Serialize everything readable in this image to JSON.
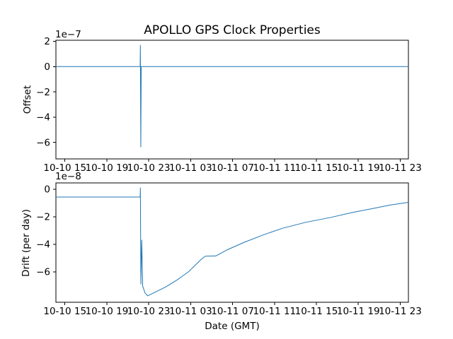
{
  "figure": {
    "title": "APOLLO GPS Clock Properties",
    "xlabel": "Date (GMT)",
    "line_color": "#1f77b4",
    "spine_color": "#000000",
    "background": "#ffffff"
  },
  "chart_data": [
    {
      "type": "line",
      "subplot": "top",
      "title": "APOLLO GPS Clock Properties",
      "ylabel": "Offset",
      "scale_label": "1e−7",
      "y_unit_multiplier": 1e-07,
      "grid": false,
      "legend": "none",
      "ylim": [
        -7.3,
        2.08
      ],
      "yticks": [
        2,
        0,
        -2,
        -4,
        -6
      ],
      "ytick_labels": [
        "2",
        "0",
        "−2",
        "−4",
        "−6"
      ],
      "x_axis_note": "hours after 10-10 00:00 GMT, read from tick labels",
      "xlim_hours": [
        14.14,
        47.78
      ],
      "xtick_hours": [
        15,
        19,
        23,
        27,
        31,
        35,
        39,
        43,
        47
      ],
      "xtick_labels": [
        "10-10 15",
        "10-10 19",
        "10-10 23",
        "10-11 03",
        "10-11 07",
        "10-11 11",
        "10-11 15",
        "10-11 19",
        "10-11 23"
      ],
      "series": [
        {
          "name": "offset",
          "points_hours_value": [
            [
              14.14,
              0.0
            ],
            [
              22.18,
              0.0
            ],
            [
              22.2,
              1.68
            ],
            [
              22.24,
              -6.35
            ],
            [
              22.28,
              0.0
            ],
            [
              47.78,
              0.0
            ]
          ]
        }
      ]
    },
    {
      "type": "line",
      "subplot": "bottom",
      "ylabel": "Drift (per day)",
      "scale_label": "1e−8",
      "y_unit_multiplier": 1e-08,
      "grid": false,
      "legend": "none",
      "ylim": [
        -8.22,
        0.46
      ],
      "yticks": [
        0,
        -2,
        -4,
        -6
      ],
      "ytick_labels": [
        "0",
        "−2",
        "−4",
        "−6"
      ],
      "x_axis_note": "hours after 10-10 00:00 GMT, read from tick labels",
      "xlim_hours": [
        14.14,
        47.78
      ],
      "xtick_hours": [
        15,
        19,
        23,
        27,
        31,
        35,
        39,
        43,
        47
      ],
      "xtick_labels": [
        "10-10 15",
        "10-10 19",
        "10-10 23",
        "10-11 03",
        "10-11 07",
        "10-11 11",
        "10-11 15",
        "10-11 19",
        "10-11 23"
      ],
      "series": [
        {
          "name": "drift",
          "points_hours_value": [
            [
              14.14,
              -0.57
            ],
            [
              22.18,
              -0.57
            ],
            [
              22.2,
              0.1
            ],
            [
              22.25,
              -6.9
            ],
            [
              22.33,
              -3.7
            ],
            [
              22.42,
              -7.05
            ],
            [
              22.65,
              -7.55
            ],
            [
              22.9,
              -7.75
            ],
            [
              23.45,
              -7.54
            ],
            [
              24.6,
              -7.11
            ],
            [
              25.7,
              -6.6
            ],
            [
              26.8,
              -6.0
            ],
            [
              28.0,
              -5.1
            ],
            [
              28.4,
              -4.87
            ],
            [
              29.4,
              -4.85
            ],
            [
              30.5,
              -4.4
            ],
            [
              32.1,
              -3.86
            ],
            [
              34.0,
              -3.3
            ],
            [
              35.8,
              -2.83
            ],
            [
              38.0,
              -2.4
            ],
            [
              40.3,
              -2.06
            ],
            [
              42.5,
              -1.68
            ],
            [
              44.6,
              -1.37
            ],
            [
              46.0,
              -1.15
            ],
            [
              47.78,
              -0.95
            ]
          ]
        }
      ]
    }
  ]
}
